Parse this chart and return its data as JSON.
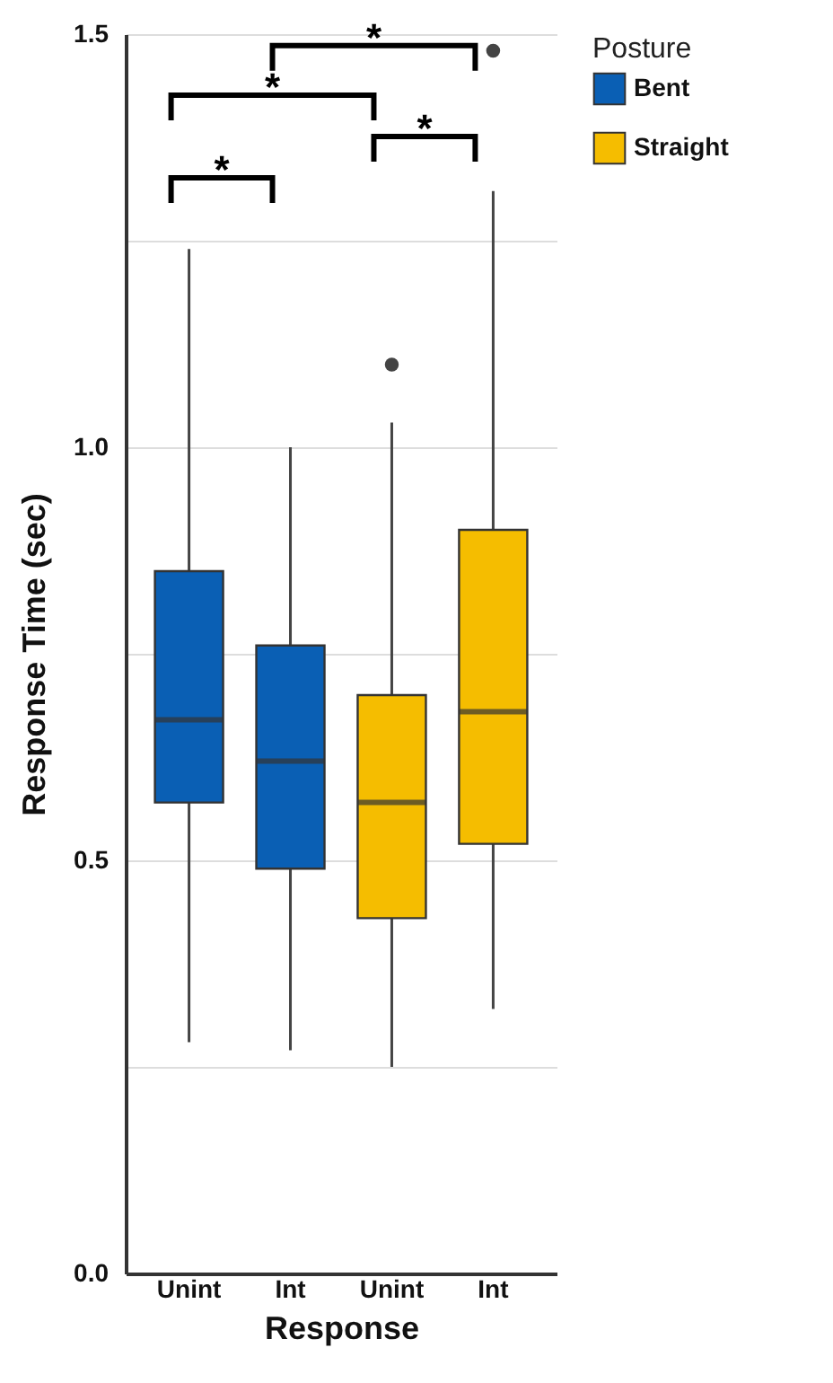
{
  "chart_data": {
    "type": "box",
    "xlabel": "Response",
    "ylabel": "Response Time (sec)",
    "legend_title": "Posture",
    "categories": [
      "Unint",
      "Int",
      "Unint",
      "Int"
    ],
    "ylim": [
      0,
      1.5
    ],
    "yticks": [
      {
        "value": 0,
        "label": "0.0"
      },
      {
        "value": 0.25,
        "label": null
      },
      {
        "value": 0.5,
        "label": "0.5"
      },
      {
        "value": 0.75,
        "label": null
      },
      {
        "value": 1,
        "label": "1.0"
      },
      {
        "value": 1.25,
        "label": null
      },
      {
        "value": 1.5,
        "label": "1.5"
      }
    ],
    "grid": "y",
    "legend": "right",
    "annotations": [
      "*",
      "*",
      "*",
      "*"
    ],
    "series": [
      {
        "name": "Bent",
        "color": "#0a5fb4",
        "boxes": [
          {
            "low": 0.28,
            "q1": 0.57,
            "median": 0.67,
            "q3": 0.85,
            "high": 1.24
          },
          {
            "low": 0.27,
            "q1": 0.49,
            "median": 0.62,
            "q3": 0.76,
            "high": 1.0
          },
          null,
          null
        ]
      },
      {
        "name": "Straight",
        "color": "#f5bd00",
        "boxes": [
          null,
          null,
          {
            "low": 0.25,
            "q1": 0.43,
            "median": 0.57,
            "q3": 0.7,
            "high": 1.03,
            "outliers": [
              1.1
            ]
          },
          {
            "low": 0.32,
            "q1": 0.52,
            "median": 0.68,
            "q3": 0.9,
            "high": 1.31,
            "outliers": [
              1.48
            ]
          }
        ]
      }
    ]
  }
}
